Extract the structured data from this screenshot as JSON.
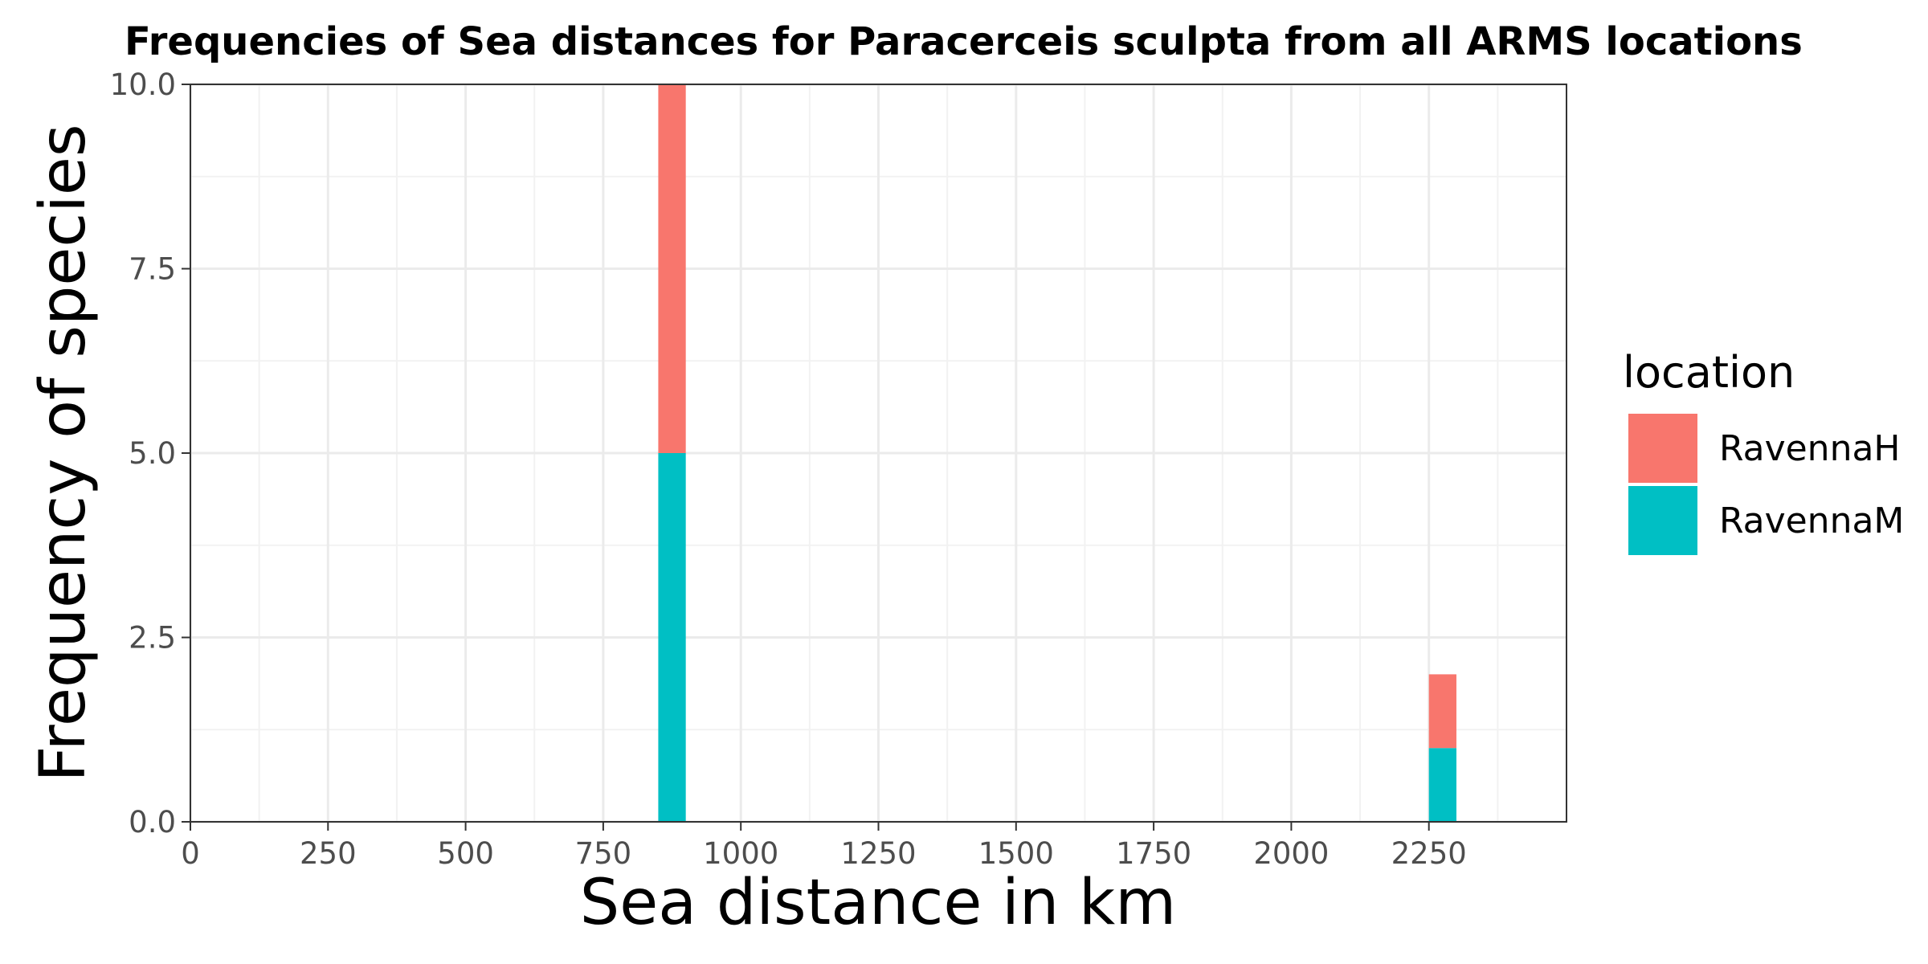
{
  "chart_data": {
    "type": "bar",
    "stacked": true,
    "title": "Frequencies of Sea distances for Paracerceis sculpta from all ARMS locations",
    "xlabel": "Sea distance in km",
    "ylabel": "Frequency of species",
    "xlim": [
      0,
      2500
    ],
    "ylim": [
      0,
      10
    ],
    "x_ticks": [
      0,
      250,
      500,
      750,
      1000,
      1250,
      1500,
      1750,
      2000,
      2250
    ],
    "x_tick_labels": [
      "0",
      "250",
      "500",
      "750",
      "1000",
      "1250",
      "1500",
      "1750",
      "2000",
      "2250"
    ],
    "y_ticks": [
      0,
      2.5,
      5,
      7.5,
      10
    ],
    "y_tick_labels": [
      "0.0",
      "2.5",
      "5.0",
      "7.5",
      "10.0"
    ],
    "bin_width": 50,
    "bins": [
      {
        "x_start": 850,
        "x_end": 900,
        "values": {
          "RavennaM": 5,
          "RavennaH": 5
        }
      },
      {
        "x_start": 2250,
        "x_end": 2300,
        "values": {
          "RavennaM": 1,
          "RavennaH": 1
        }
      }
    ],
    "series": [
      {
        "name": "RavennaH",
        "color": "#F8766D"
      },
      {
        "name": "RavennaM",
        "color": "#00BFC4"
      }
    ],
    "stack_order": [
      "RavennaM",
      "RavennaH"
    ],
    "legend": {
      "title": "location",
      "position": "right"
    },
    "grid": true,
    "theme": {
      "background": "#ffffff",
      "grid_major": "#ebebeb",
      "grid_minor": "#f2f2f2",
      "border": "#333333",
      "tick_text": "#4d4d4d"
    }
  }
}
